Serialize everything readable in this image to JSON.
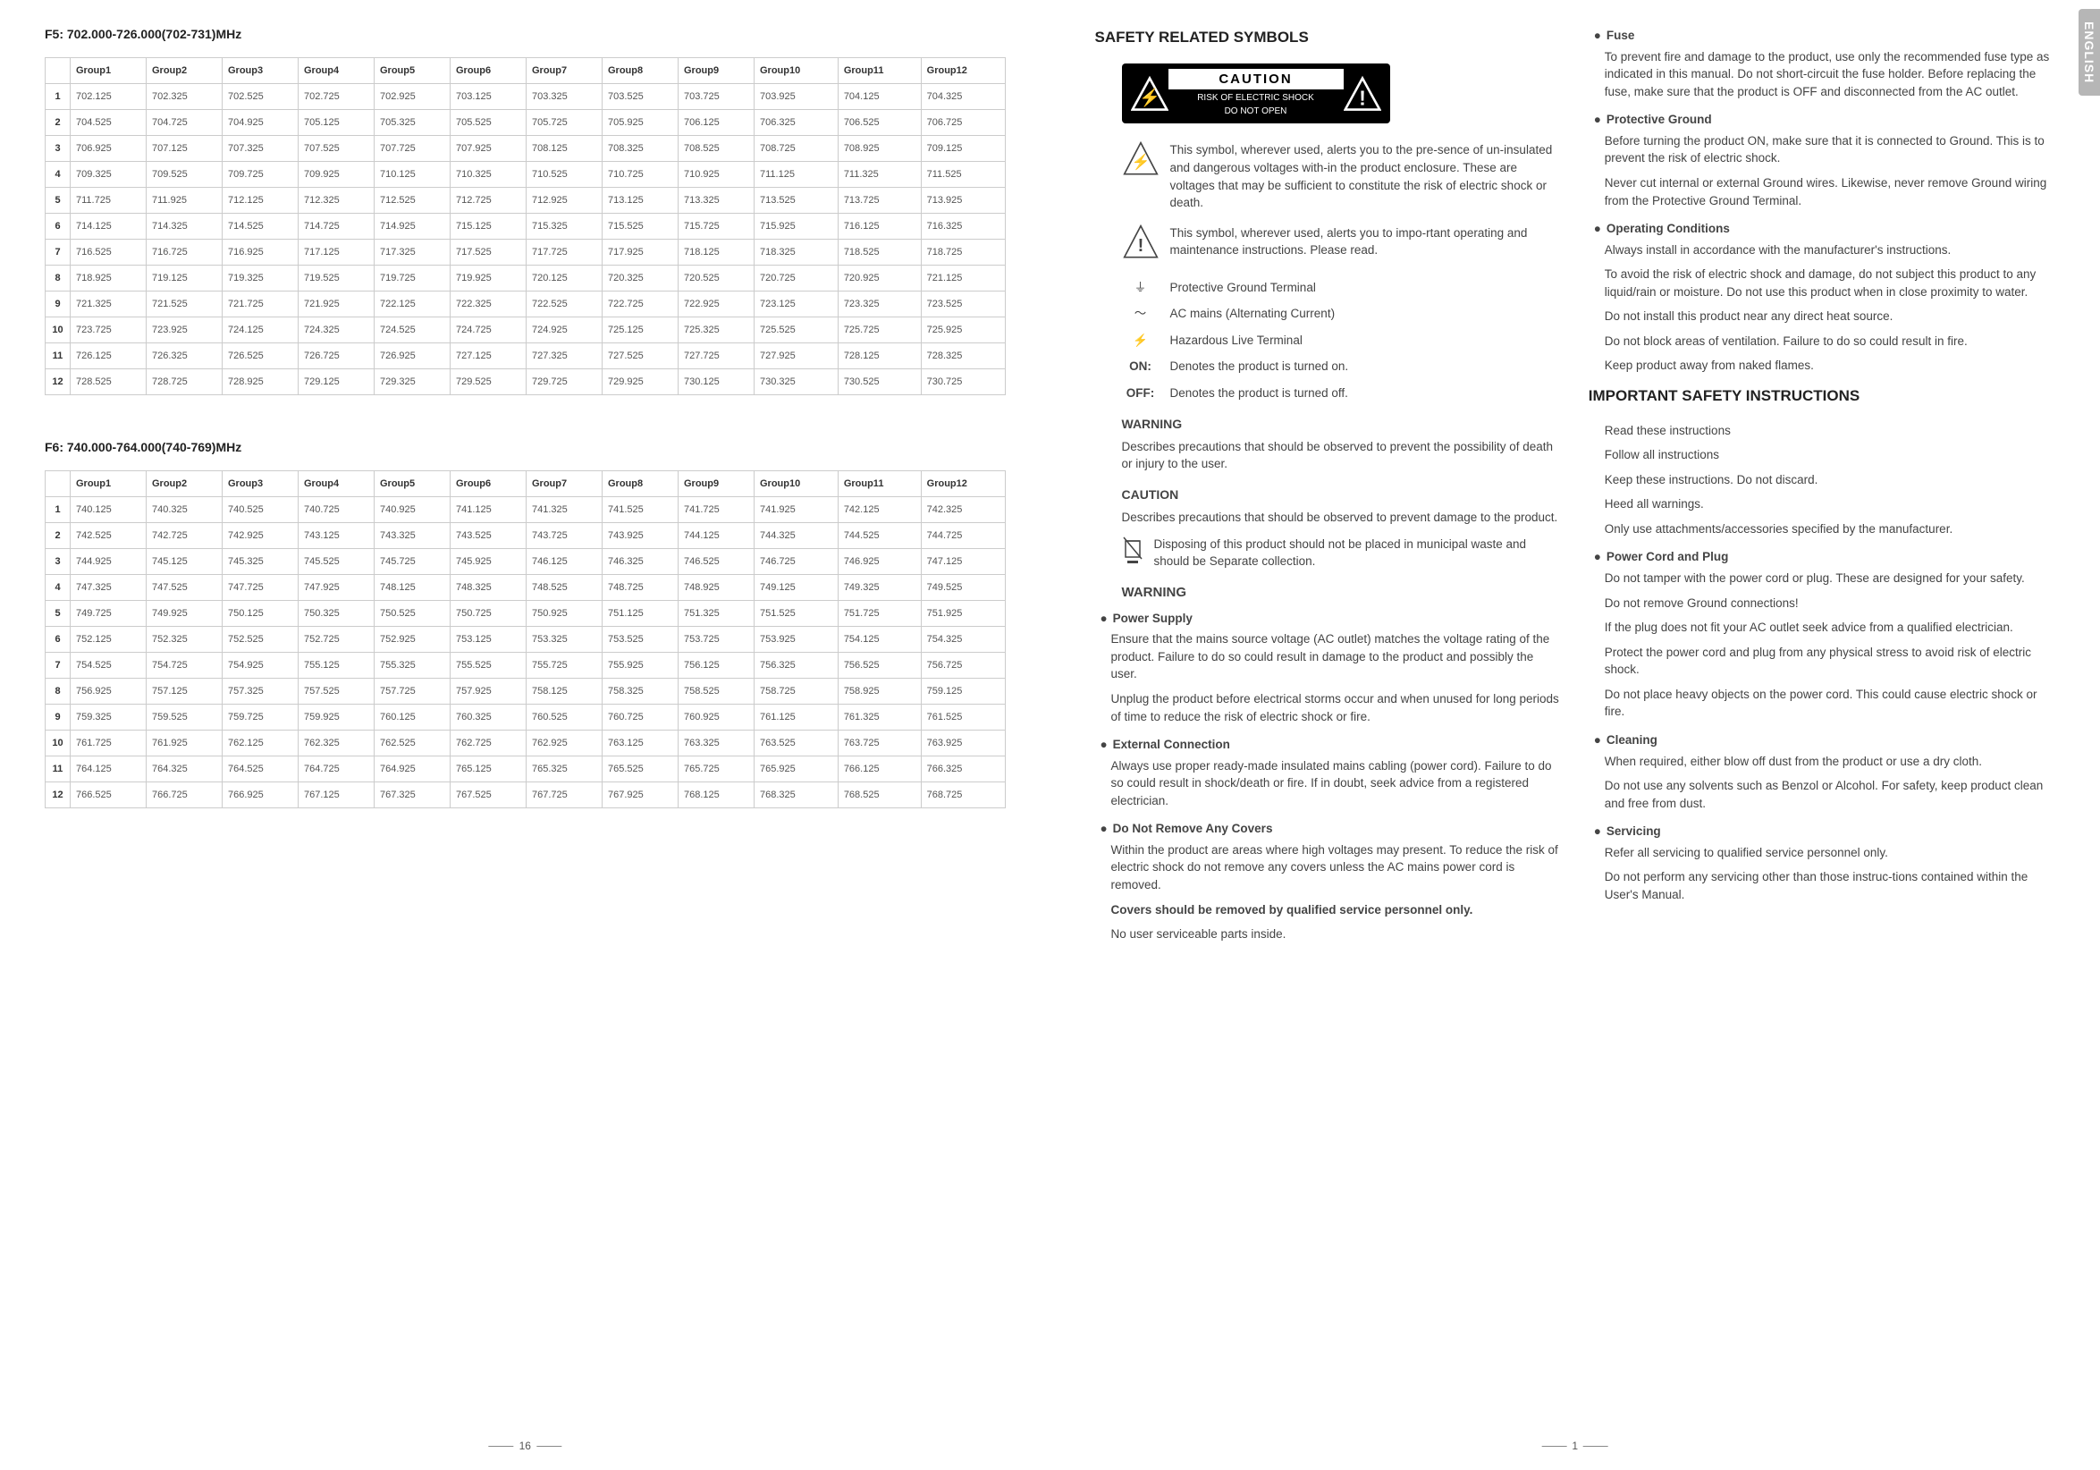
{
  "tab": "ENGLISH",
  "pageLeftNum": "16",
  "pageRightNum": "1",
  "tableF5": {
    "title": "F5: 702.000-726.000(702-731)MHz",
    "headers": [
      "",
      "Group1",
      "Group2",
      "Group3",
      "Group4",
      "Group5",
      "Group6",
      "Group7",
      "Group8",
      "Group9",
      "Group10",
      "Group11",
      "Group12"
    ],
    "rows": [
      [
        "1",
        "702.125",
        "702.325",
        "702.525",
        "702.725",
        "702.925",
        "703.125",
        "703.325",
        "703.525",
        "703.725",
        "703.925",
        "704.125",
        "704.325"
      ],
      [
        "2",
        "704.525",
        "704.725",
        "704.925",
        "705.125",
        "705.325",
        "705.525",
        "705.725",
        "705.925",
        "706.125",
        "706.325",
        "706.525",
        "706.725"
      ],
      [
        "3",
        "706.925",
        "707.125",
        "707.325",
        "707.525",
        "707.725",
        "707.925",
        "708.125",
        "708.325",
        "708.525",
        "708.725",
        "708.925",
        "709.125"
      ],
      [
        "4",
        "709.325",
        "709.525",
        "709.725",
        "709.925",
        "710.125",
        "710.325",
        "710.525",
        "710.725",
        "710.925",
        "711.125",
        "711.325",
        "711.525"
      ],
      [
        "5",
        "711.725",
        "711.925",
        "712.125",
        "712.325",
        "712.525",
        "712.725",
        "712.925",
        "713.125",
        "713.325",
        "713.525",
        "713.725",
        "713.925"
      ],
      [
        "6",
        "714.125",
        "714.325",
        "714.525",
        "714.725",
        "714.925",
        "715.125",
        "715.325",
        "715.525",
        "715.725",
        "715.925",
        "716.125",
        "716.325"
      ],
      [
        "7",
        "716.525",
        "716.725",
        "716.925",
        "717.125",
        "717.325",
        "717.525",
        "717.725",
        "717.925",
        "718.125",
        "718.325",
        "718.525",
        "718.725"
      ],
      [
        "8",
        "718.925",
        "719.125",
        "719.325",
        "719.525",
        "719.725",
        "719.925",
        "720.125",
        "720.325",
        "720.525",
        "720.725",
        "720.925",
        "721.125"
      ],
      [
        "9",
        "721.325",
        "721.525",
        "721.725",
        "721.925",
        "722.125",
        "722.325",
        "722.525",
        "722.725",
        "722.925",
        "723.125",
        "723.325",
        "723.525"
      ],
      [
        "10",
        "723.725",
        "723.925",
        "724.125",
        "724.325",
        "724.525",
        "724.725",
        "724.925",
        "725.125",
        "725.325",
        "725.525",
        "725.725",
        "725.925"
      ],
      [
        "11",
        "726.125",
        "726.325",
        "726.525",
        "726.725",
        "726.925",
        "727.125",
        "727.325",
        "727.525",
        "727.725",
        "727.925",
        "728.125",
        "728.325"
      ],
      [
        "12",
        "728.525",
        "728.725",
        "728.925",
        "729.125",
        "729.325",
        "729.525",
        "729.725",
        "729.925",
        "730.125",
        "730.325",
        "730.525",
        "730.725"
      ]
    ]
  },
  "tableF6": {
    "title": "F6: 740.000-764.000(740-769)MHz",
    "headers": [
      "",
      "Group1",
      "Group2",
      "Group3",
      "Group4",
      "Group5",
      "Group6",
      "Group7",
      "Group8",
      "Group9",
      "Group10",
      "Group11",
      "Group12"
    ],
    "rows": [
      [
        "1",
        "740.125",
        "740.325",
        "740.525",
        "740.725",
        "740.925",
        "741.125",
        "741.325",
        "741.525",
        "741.725",
        "741.925",
        "742.125",
        "742.325"
      ],
      [
        "2",
        "742.525",
        "742.725",
        "742.925",
        "743.125",
        "743.325",
        "743.525",
        "743.725",
        "743.925",
        "744.125",
        "744.325",
        "744.525",
        "744.725"
      ],
      [
        "3",
        "744.925",
        "745.125",
        "745.325",
        "745.525",
        "745.725",
        "745.925",
        "746.125",
        "746.325",
        "746.525",
        "746.725",
        "746.925",
        "747.125"
      ],
      [
        "4",
        "747.325",
        "747.525",
        "747.725",
        "747.925",
        "748.125",
        "748.325",
        "748.525",
        "748.725",
        "748.925",
        "749.125",
        "749.325",
        "749.525"
      ],
      [
        "5",
        "749.725",
        "749.925",
        "750.125",
        "750.325",
        "750.525",
        "750.725",
        "750.925",
        "751.125",
        "751.325",
        "751.525",
        "751.725",
        "751.925"
      ],
      [
        "6",
        "752.125",
        "752.325",
        "752.525",
        "752.725",
        "752.925",
        "753.125",
        "753.325",
        "753.525",
        "753.725",
        "753.925",
        "754.125",
        "754.325"
      ],
      [
        "7",
        "754.525",
        "754.725",
        "754.925",
        "755.125",
        "755.325",
        "755.525",
        "755.725",
        "755.925",
        "756.125",
        "756.325",
        "756.525",
        "756.725"
      ],
      [
        "8",
        "756.925",
        "757.125",
        "757.325",
        "757.525",
        "757.725",
        "757.925",
        "758.125",
        "758.325",
        "758.525",
        "758.725",
        "758.925",
        "759.125"
      ],
      [
        "9",
        "759.325",
        "759.525",
        "759.725",
        "759.925",
        "760.125",
        "760.325",
        "760.525",
        "760.725",
        "760.925",
        "761.125",
        "761.325",
        "761.525"
      ],
      [
        "10",
        "761.725",
        "761.925",
        "762.125",
        "762.325",
        "762.525",
        "762.725",
        "762.925",
        "763.125",
        "763.325",
        "763.525",
        "763.725",
        "763.925"
      ],
      [
        "11",
        "764.125",
        "764.325",
        "764.525",
        "764.725",
        "764.925",
        "765.125",
        "765.325",
        "765.525",
        "765.725",
        "765.925",
        "766.125",
        "766.325"
      ],
      [
        "12",
        "766.525",
        "766.725",
        "766.925",
        "767.125",
        "767.325",
        "767.525",
        "767.725",
        "767.925",
        "768.125",
        "768.325",
        "768.525",
        "768.725"
      ]
    ]
  },
  "safety": {
    "title": "SAFETY RELATED SYMBOLS",
    "caution": {
      "big": "CAUTION",
      "line1": "RISK OF ELECTRIC SHOCK",
      "line2": "DO NOT OPEN"
    },
    "shockText": "This symbol, wherever used, alerts you to the pre-sence of un-insulated and dangerous voltages with-in the product enclosure. These are voltages that may be sufficient to constitute the risk of electric shock or death.",
    "alertText": "This symbol, wherever used, alerts you to impo-rtant operating and maintenance instructions. Please read.",
    "ground": "Protective Ground Terminal",
    "acmains": "AC mains (Alternating Current)",
    "hazlive": "Hazardous Live Terminal",
    "on": "Denotes the product is turned on.",
    "off": "Denotes the product is turned off.",
    "warningHeading": "WARNING",
    "warningDef": "Describes precautions that should be observed to prevent the possibility of death or injury to the user.",
    "cautionHeading": "CAUTION",
    "cautionDef": "Describes precautions that should be observed to prevent damage to the product.",
    "disposal": "Disposing of this product should not be placed in municipal waste and should be Separate collection.",
    "warning2": "WARNING",
    "powerSupply": {
      "h": "Power Supply",
      "p1": "Ensure that the mains source voltage (AC outlet) matches the voltage rating of the product. Failure to do so could result in damage to the product and possibly the user.",
      "p2": "Unplug the product before electrical storms occur and when unused for long periods of time to reduce the risk of electric shock or fire."
    },
    "extConn": {
      "h": "External Connection",
      "p1": "Always use proper ready-made insulated mains cabling (power cord). Failure to do so could result in shock/death or fire. If in doubt, seek advice from a registered electrician."
    },
    "covers": {
      "h": "Do Not Remove Any Covers",
      "p1": "Within the product are areas where high voltages may present. To reduce the risk of electric shock do not remove any covers unless the AC mains power cord is removed.",
      "p2": "Covers should be removed by qualified service personnel only.",
      "p3": "No user serviceable parts inside."
    },
    "fuse": {
      "h": "Fuse",
      "p1": "To prevent fire and damage to the product, use only the recommended fuse type as indicated in this manual. Do not short-circuit the fuse holder. Before replacing the fuse, make sure that the product is OFF and disconnected from the AC outlet."
    },
    "protGround": {
      "h": "Protective Ground",
      "p1": "Before turning the product ON, make sure that it is connected to Ground. This is to prevent the risk of electric shock.",
      "p2": "Never cut internal or external Ground wires. Likewise, never remove Ground wiring from the Protective Ground Terminal."
    },
    "opCond": {
      "h": "Operating Conditions",
      "p1": "Always install in accordance with the manufacturer's instructions.",
      "p2": "To avoid the risk of electric shock and damage, do not subject this product to any liquid/rain or moisture. Do not use this product when in close proximity to water.",
      "p3": "Do not install this product near any direct heat source.",
      "p4": "Do not block areas of ventilation. Failure to do so could result in fire.",
      "p5": "Keep product away from naked flames."
    },
    "important": {
      "h": "IMPORTANT SAFETY INSTRUCTIONS",
      "p1": "Read these instructions",
      "p2": "Follow all instructions",
      "p3": "Keep these instructions. Do not discard.",
      "p4": "Heed all warnings.",
      "p5": "Only use attachments/accessories specified by the manufacturer."
    },
    "powerCord": {
      "h": "Power Cord and Plug",
      "p1": "Do not tamper with the power cord or plug. These are designed for your safety.",
      "p2": "Do not remove Ground connections!",
      "p3": "If the plug does not fit your AC outlet seek advice from a qualified electrician.",
      "p4": "Protect the power cord and plug from any physical stress to avoid risk of electric shock.",
      "p5": "Do not place heavy objects on the power cord. This could cause electric shock or fire."
    },
    "cleaning": {
      "h": "Cleaning",
      "p1": "When required, either blow off dust from the product or use a dry cloth.",
      "p2": "Do not use any solvents such as Benzol or Alcohol. For safety, keep product clean and free from dust."
    },
    "servicing": {
      "h": "Servicing",
      "p1": "Refer all servicing to qualified service personnel only.",
      "p2": "Do not perform any servicing other than those instruc-tions contained within the User's Manual."
    }
  }
}
